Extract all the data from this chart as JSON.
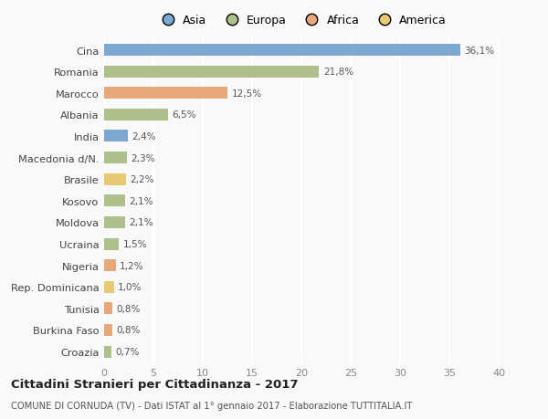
{
  "countries": [
    "Cina",
    "Romania",
    "Marocco",
    "Albania",
    "India",
    "Macedonia d/N.",
    "Brasile",
    "Kosovo",
    "Moldova",
    "Ucraina",
    "Nigeria",
    "Rep. Dominicana",
    "Tunisia",
    "Burkina Faso",
    "Croazia"
  ],
  "values": [
    36.1,
    21.8,
    12.5,
    6.5,
    2.4,
    2.3,
    2.2,
    2.1,
    2.1,
    1.5,
    1.2,
    1.0,
    0.8,
    0.8,
    0.7
  ],
  "labels": [
    "36,1%",
    "21,8%",
    "12,5%",
    "6,5%",
    "2,4%",
    "2,3%",
    "2,2%",
    "2,1%",
    "2,1%",
    "1,5%",
    "1,2%",
    "1,0%",
    "0,8%",
    "0,8%",
    "0,7%"
  ],
  "colors": [
    "#7ba7d0",
    "#adc08a",
    "#e8a87c",
    "#adc08a",
    "#7ba7d0",
    "#adc08a",
    "#e8c870",
    "#adc08a",
    "#adc08a",
    "#adc08a",
    "#e8a87c",
    "#e8c870",
    "#e8a87c",
    "#e8a87c",
    "#adc08a"
  ],
  "continent_colors": {
    "Asia": "#7ba7d0",
    "Europa": "#adc08a",
    "Africa": "#e8a87c",
    "America": "#e8c870"
  },
  "title": "Cittadini Stranieri per Cittadinanza - 2017",
  "subtitle": "COMUNE DI CORNUDA (TV) - Dati ISTAT al 1° gennaio 2017 - Elaborazione TUTTITALIA.IT",
  "xlim": [
    0,
    40
  ],
  "xticks": [
    0,
    5,
    10,
    15,
    20,
    25,
    30,
    35,
    40
  ],
  "background_color": "#f9f9f9",
  "bar_height": 0.55
}
